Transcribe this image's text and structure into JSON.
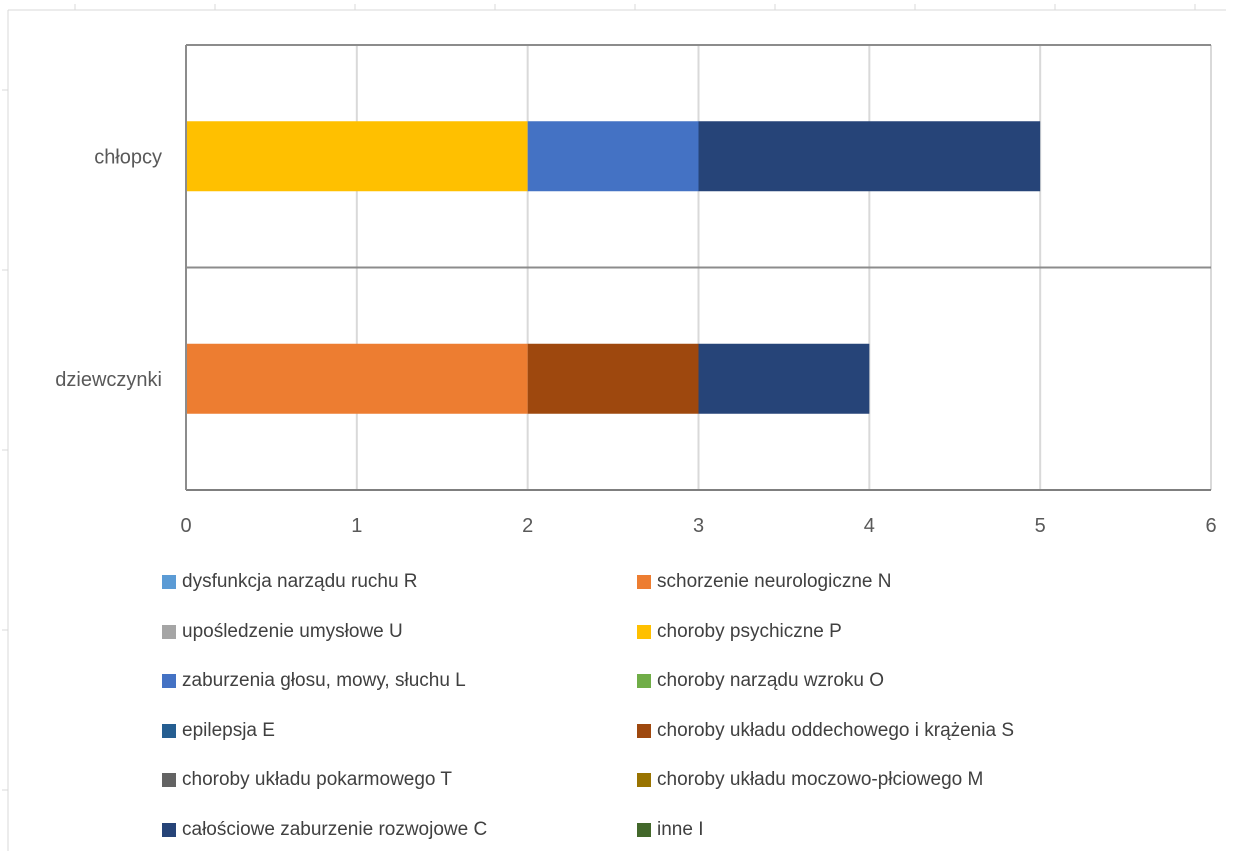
{
  "chart_data": {
    "type": "bar",
    "orientation": "horizontal",
    "stacked": true,
    "categories": [
      "chłopcy",
      "dziewczynki"
    ],
    "xlim": [
      0,
      6
    ],
    "x_ticks": [
      "0",
      "1",
      "2",
      "3",
      "4",
      "5",
      "6"
    ],
    "grid": true,
    "legend_position": "bottom",
    "series": [
      {
        "name": "dysfunkcja narządu ruchu R",
        "color": "#5B9BD5",
        "values": [
          0,
          0
        ]
      },
      {
        "name": "schorzenie neurologiczne N",
        "color": "#ED7D31",
        "values": [
          0,
          2
        ]
      },
      {
        "name": "upośledzenie umysłowe U",
        "color": "#A5A5A5",
        "values": [
          0,
          0
        ]
      },
      {
        "name": "choroby psychiczne P",
        "color": "#FFC000",
        "values": [
          2,
          0
        ]
      },
      {
        "name": "zaburzenia głosu, mowy, słuchu L",
        "color": "#4472C4",
        "values": [
          1,
          0
        ]
      },
      {
        "name": "choroby narządu wzroku O",
        "color": "#70AD47",
        "values": [
          0,
          0
        ]
      },
      {
        "name": "epilepsja E",
        "color": "#255E91",
        "values": [
          0,
          0
        ]
      },
      {
        "name": "choroby układu oddechowego i krążenia S",
        "color": "#9E480E",
        "values": [
          0,
          1
        ]
      },
      {
        "name": "choroby układu pokarmowego T",
        "color": "#636363",
        "values": [
          0,
          0
        ]
      },
      {
        "name": "choroby układu moczowo-płciowego M",
        "color": "#997300",
        "values": [
          0,
          0
        ]
      },
      {
        "name": "całościowe zaburzenie rozwojowe C",
        "color": "#264478",
        "values": [
          2,
          1
        ]
      },
      {
        "name": "inne I",
        "color": "#43682B",
        "values": [
          0,
          0
        ]
      }
    ]
  }
}
